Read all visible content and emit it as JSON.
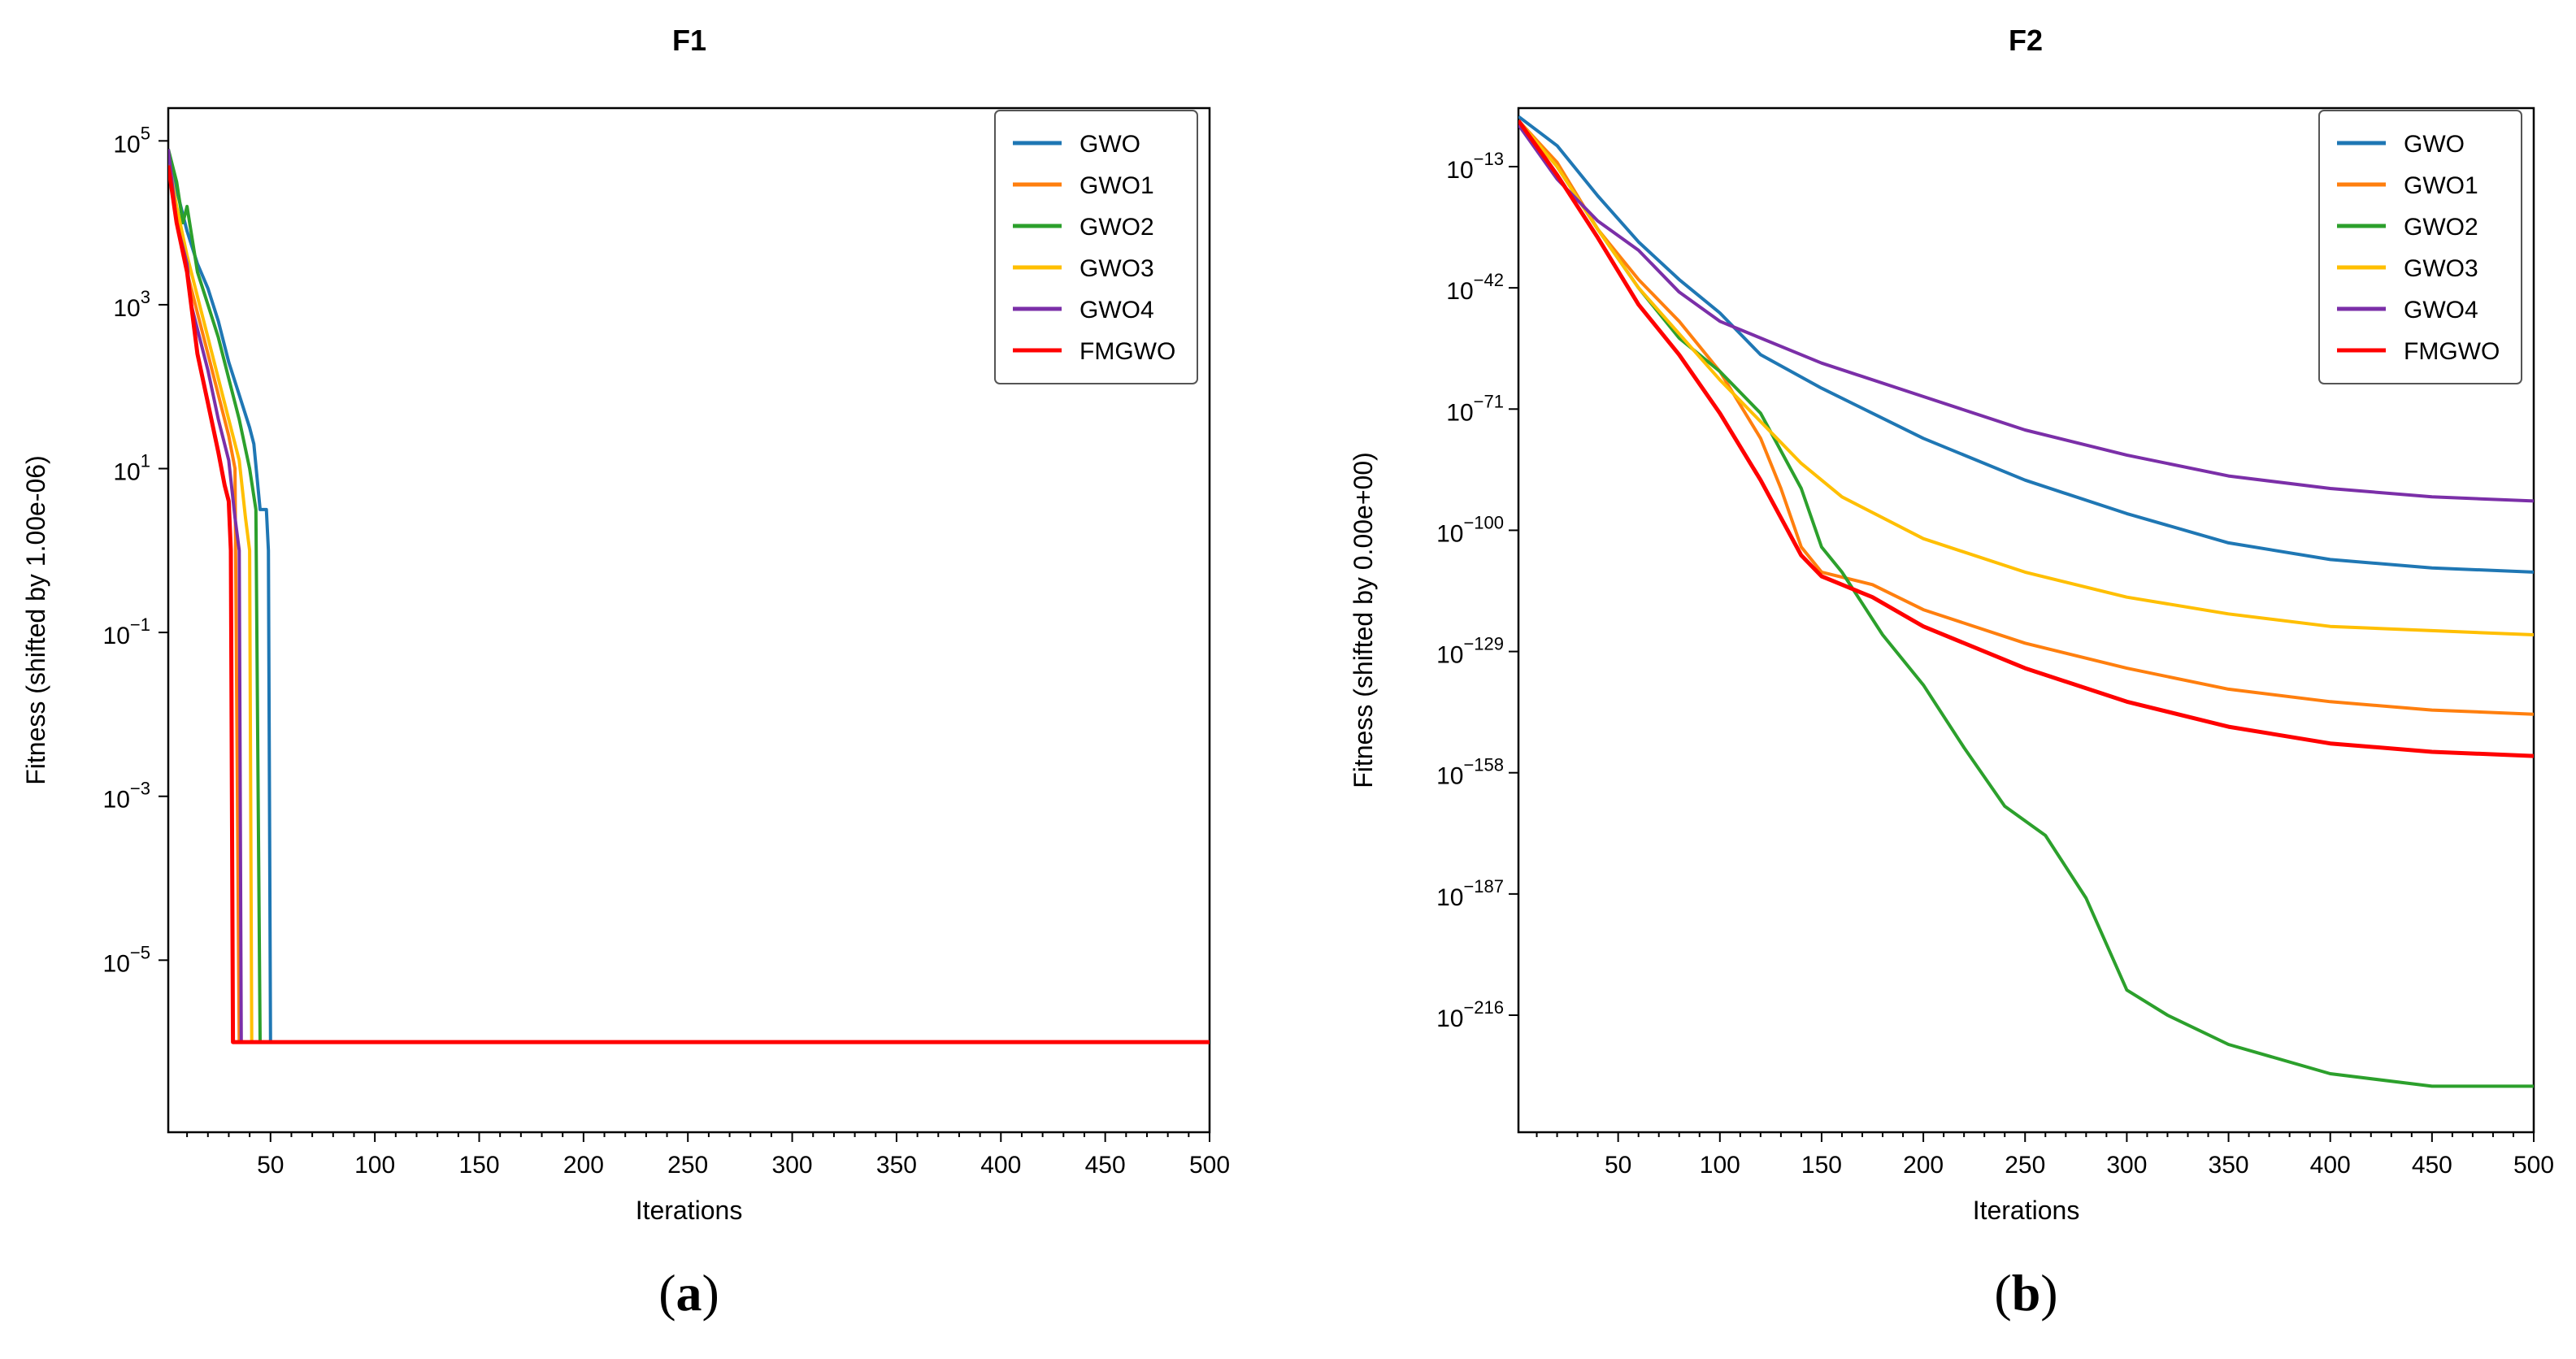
{
  "colors": {
    "GWO": "#1f77b4",
    "GWO1": "#ff7f0e",
    "GWO2": "#2ca02c",
    "GWO3": "#ffbf00",
    "GWO4": "#7b2fa8",
    "FMGWO": "#ff0000"
  },
  "chart_data": [
    {
      "type": "line",
      "title": "F1",
      "xlabel": "Iterations",
      "ylabel": "Fitness (shifted by 1.00e-06)",
      "yscale": "log",
      "xlim": [
        1,
        500
      ],
      "ylim_log10": [
        -7.1,
        5.4
      ],
      "xticks": [
        50,
        100,
        150,
        200,
        250,
        300,
        350,
        400,
        450,
        500
      ],
      "yticks_exp": [
        5,
        3,
        1,
        -1,
        -3,
        -5
      ],
      "ytick_base": "10",
      "ytick_labels": [
        "5",
        "3",
        "1",
        "−1",
        "−3",
        "−5"
      ],
      "legend": [
        "GWO",
        "GWO1",
        "GWO2",
        "GWO3",
        "GWO4",
        "FMGWO"
      ],
      "legend_position": "top-right",
      "panel_label": "a",
      "series": [
        {
          "name": "GWO",
          "points": [
            [
              1,
              4.8
            ],
            [
              5,
              4.4
            ],
            [
              10,
              3.9
            ],
            [
              15,
              3.5
            ],
            [
              20,
              3.2
            ],
            [
              25,
              2.8
            ],
            [
              30,
              2.3
            ],
            [
              35,
              1.9
            ],
            [
              40,
              1.5
            ],
            [
              42,
              1.3
            ],
            [
              45,
              0.5
            ],
            [
              48,
              0.5
            ],
            [
              49,
              0.0
            ],
            [
              50,
              -6.0
            ],
            [
              500,
              -6.0
            ]
          ]
        },
        {
          "name": "GWO1",
          "points": [
            [
              1,
              4.8
            ],
            [
              5,
              4.1
            ],
            [
              10,
              3.4
            ],
            [
              15,
              2.9
            ],
            [
              20,
              2.4
            ],
            [
              25,
              1.9
            ],
            [
              30,
              1.4
            ],
            [
              33,
              1.0
            ],
            [
              35,
              -6.0
            ],
            [
              500,
              -6.0
            ]
          ]
        },
        {
          "name": "GWO2",
          "points": [
            [
              1,
              4.9
            ],
            [
              5,
              4.5
            ],
            [
              8,
              4.0
            ],
            [
              10,
              4.2
            ],
            [
              15,
              3.4
            ],
            [
              20,
              3.0
            ],
            [
              25,
              2.6
            ],
            [
              30,
              2.1
            ],
            [
              35,
              1.6
            ],
            [
              40,
              1.0
            ],
            [
              43,
              0.5
            ],
            [
              45,
              -6.0
            ],
            [
              500,
              -6.0
            ]
          ]
        },
        {
          "name": "GWO3",
          "points": [
            [
              1,
              4.8
            ],
            [
              5,
              4.2
            ],
            [
              10,
              3.6
            ],
            [
              15,
              3.1
            ],
            [
              20,
              2.6
            ],
            [
              25,
              2.1
            ],
            [
              30,
              1.6
            ],
            [
              35,
              1.1
            ],
            [
              38,
              0.4
            ],
            [
              40,
              0.0
            ],
            [
              41,
              -6.0
            ],
            [
              500,
              -6.0
            ]
          ]
        },
        {
          "name": "GWO4",
          "points": [
            [
              1,
              4.9
            ],
            [
              5,
              4.0
            ],
            [
              10,
              3.5
            ],
            [
              12,
              3.0
            ],
            [
              15,
              2.7
            ],
            [
              20,
              2.2
            ],
            [
              25,
              1.6
            ],
            [
              30,
              1.1
            ],
            [
              33,
              0.4
            ],
            [
              35,
              0.0
            ],
            [
              36,
              -6.0
            ],
            [
              500,
              -6.0
            ]
          ]
        },
        {
          "name": "FMGWO",
          "points": [
            [
              1,
              4.7
            ],
            [
              5,
              4.0
            ],
            [
              10,
              3.4
            ],
            [
              12,
              3.0
            ],
            [
              15,
              2.4
            ],
            [
              20,
              1.8
            ],
            [
              25,
              1.2
            ],
            [
              28,
              0.8
            ],
            [
              30,
              0.6
            ],
            [
              31,
              0.0
            ],
            [
              32,
              -6.0
            ],
            [
              500,
              -6.0
            ]
          ]
        }
      ]
    },
    {
      "type": "line",
      "title": "F2",
      "xlabel": "Iterations",
      "ylabel": "Fitness (shifted by 0.00e+00)",
      "yscale": "log",
      "xlim": [
        1,
        500
      ],
      "ylim_log10": [
        -244,
        1
      ],
      "xticks": [
        50,
        100,
        150,
        200,
        250,
        300,
        350,
        400,
        450,
        500
      ],
      "yticks_exp": [
        -13,
        -42,
        -71,
        -100,
        -129,
        -158,
        -187,
        -216
      ],
      "ytick_base": "10",
      "ytick_labels": [
        "−13",
        "−42",
        "−71",
        "−100",
        "−129",
        "−158",
        "−187",
        "−216"
      ],
      "legend": [
        "GWO",
        "GWO1",
        "GWO2",
        "GWO3",
        "GWO4",
        "FMGWO"
      ],
      "legend_position": "top-right",
      "panel_label": "b",
      "series": [
        {
          "name": "GWO",
          "points": [
            [
              1,
              -1
            ],
            [
              20,
              -8
            ],
            [
              40,
              -20
            ],
            [
              60,
              -31
            ],
            [
              80,
              -40
            ],
            [
              100,
              -48
            ],
            [
              120,
              -58
            ],
            [
              150,
              -66
            ],
            [
              200,
              -78
            ],
            [
              250,
              -88
            ],
            [
              300,
              -96
            ],
            [
              350,
              -103
            ],
            [
              400,
              -107
            ],
            [
              450,
              -109
            ],
            [
              500,
              -110
            ]
          ]
        },
        {
          "name": "GWO1",
          "points": [
            [
              1,
              -2
            ],
            [
              20,
              -12
            ],
            [
              40,
              -28
            ],
            [
              60,
              -40
            ],
            [
              80,
              -50
            ],
            [
              100,
              -62
            ],
            [
              120,
              -78
            ],
            [
              130,
              -90
            ],
            [
              140,
              -104
            ],
            [
              150,
              -110
            ],
            [
              175,
              -113
            ],
            [
              200,
              -119
            ],
            [
              250,
              -127
            ],
            [
              300,
              -133
            ],
            [
              350,
              -138
            ],
            [
              400,
              -141
            ],
            [
              450,
              -143
            ],
            [
              500,
              -144
            ]
          ]
        },
        {
          "name": "GWO2",
          "points": [
            [
              1,
              -2
            ],
            [
              20,
              -13
            ],
            [
              40,
              -28
            ],
            [
              60,
              -42
            ],
            [
              80,
              -54
            ],
            [
              100,
              -62
            ],
            [
              120,
              -72
            ],
            [
              140,
              -90
            ],
            [
              150,
              -104
            ],
            [
              160,
              -110
            ],
            [
              180,
              -125
            ],
            [
              200,
              -137
            ],
            [
              220,
              -152
            ],
            [
              240,
              -166
            ],
            [
              260,
              -173
            ],
            [
              280,
              -188
            ],
            [
              300,
              -210
            ],
            [
              320,
              -216
            ],
            [
              350,
              -223
            ],
            [
              400,
              -230
            ],
            [
              450,
              -233
            ],
            [
              500,
              -233
            ]
          ]
        },
        {
          "name": "GWO3",
          "points": [
            [
              1,
              -2
            ],
            [
              20,
              -13
            ],
            [
              40,
              -28
            ],
            [
              60,
              -42
            ],
            [
              80,
              -53
            ],
            [
              100,
              -64
            ],
            [
              120,
              -74
            ],
            [
              140,
              -84
            ],
            [
              160,
              -92
            ],
            [
              200,
              -102
            ],
            [
              250,
              -110
            ],
            [
              300,
              -116
            ],
            [
              350,
              -120
            ],
            [
              400,
              -123
            ],
            [
              450,
              -124
            ],
            [
              500,
              -125
            ]
          ]
        },
        {
          "name": "GWO4",
          "points": [
            [
              1,
              -3
            ],
            [
              20,
              -16
            ],
            [
              40,
              -26
            ],
            [
              60,
              -33
            ],
            [
              80,
              -43
            ],
            [
              100,
              -50
            ],
            [
              150,
              -60
            ],
            [
              200,
              -68
            ],
            [
              250,
              -76
            ],
            [
              300,
              -82
            ],
            [
              350,
              -87
            ],
            [
              400,
              -90
            ],
            [
              450,
              -92
            ],
            [
              500,
              -93
            ]
          ]
        },
        {
          "name": "FMGWO",
          "points": [
            [
              1,
              -2
            ],
            [
              20,
              -15
            ],
            [
              40,
              -30
            ],
            [
              60,
              -46
            ],
            [
              80,
              -58
            ],
            [
              100,
              -72
            ],
            [
              120,
              -88
            ],
            [
              140,
              -106
            ],
            [
              150,
              -111
            ],
            [
              175,
              -116
            ],
            [
              200,
              -123
            ],
            [
              250,
              -133
            ],
            [
              300,
              -141
            ],
            [
              350,
              -147
            ],
            [
              400,
              -151
            ],
            [
              450,
              -153
            ],
            [
              500,
              -154
            ]
          ]
        }
      ]
    }
  ]
}
